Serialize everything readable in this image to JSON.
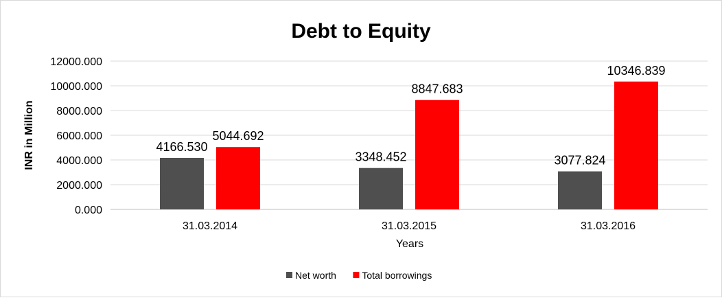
{
  "chart_data": {
    "type": "bar",
    "title": "Debt to Equity",
    "xlabel": "Years",
    "ylabel": "INR in Million",
    "categories": [
      "31.03.2014",
      "31.03.2015",
      "31.03.2016"
    ],
    "series": [
      {
        "name": "Net worth",
        "color": "#4f4f4f",
        "values": [
          4166.53,
          3348.452,
          3077.824
        ],
        "labels": [
          "4166.530",
          "3348.452",
          "3077.824"
        ]
      },
      {
        "name": "Total borrowings",
        "color": "#ff0000",
        "values": [
          5044.692,
          8847.683,
          10346.839
        ],
        "labels": [
          "5044.692",
          "8847.683",
          "10346.839"
        ]
      }
    ],
    "yticks": [
      0,
      2000,
      4000,
      6000,
      8000,
      10000,
      12000
    ],
    "ytick_labels": [
      "0.000",
      "2000.000",
      "4000.000",
      "6000.000",
      "8000.000",
      "10000.000",
      "12000.000"
    ],
    "ylim": [
      0,
      12000
    ],
    "grid": "horizontal",
    "legend": "bottom-center"
  }
}
